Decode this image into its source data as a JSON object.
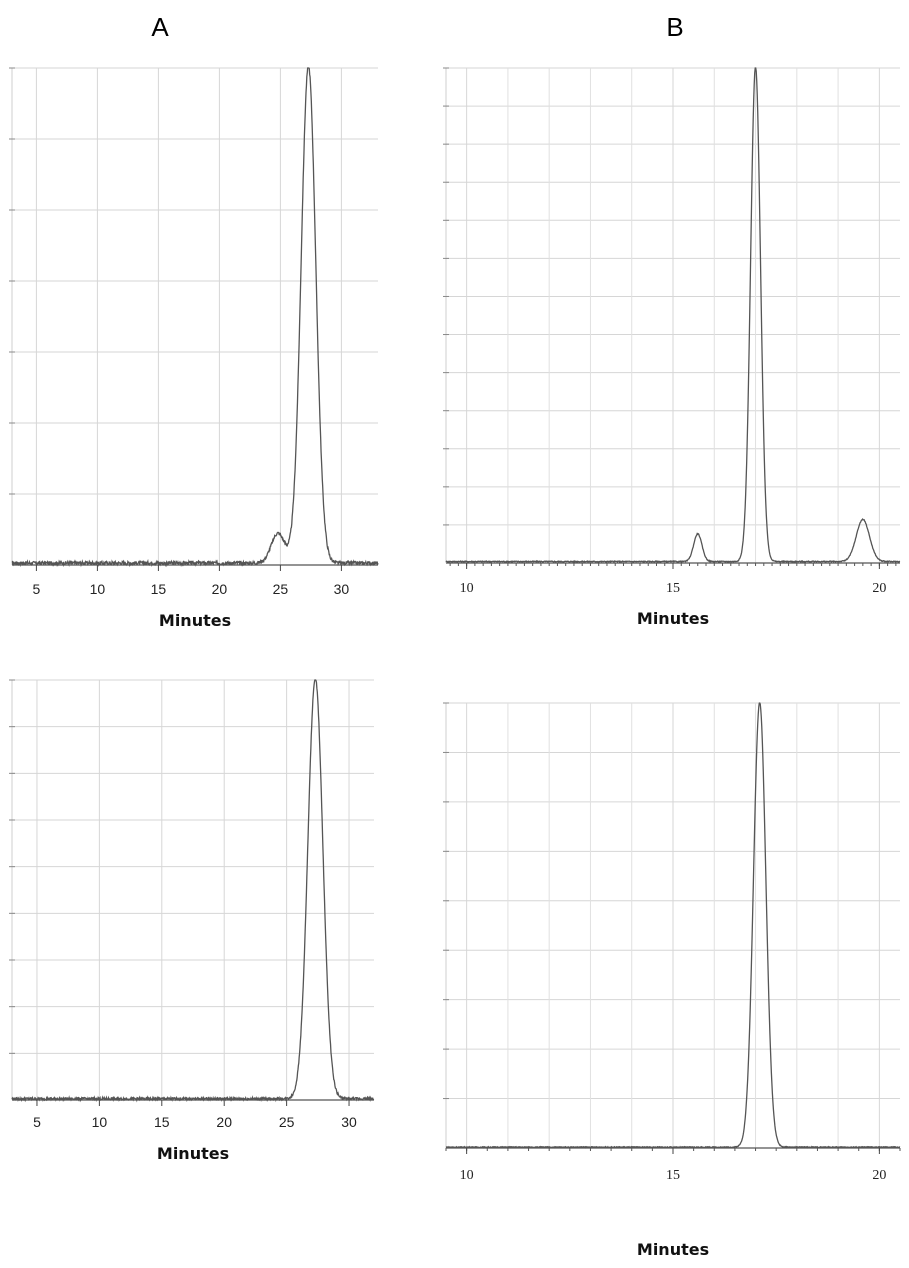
{
  "panel_labels": {
    "a": "A",
    "b": "B"
  },
  "chart_data": [
    {
      "id": "a-top",
      "type": "line",
      "xlabel": "Minutes",
      "xlim": [
        3,
        33
      ],
      "ylim": [
        0,
        100
      ],
      "x_ticks": [
        5,
        10,
        15,
        20,
        25,
        30
      ],
      "x_tick_labels": [
        "5",
        "10",
        "15",
        "20",
        "25",
        "30"
      ],
      "y_gridlines": 7,
      "grid": true,
      "peaks": [
        {
          "x": 24.8,
          "height": 6.0,
          "width": 0.55
        },
        {
          "x": 27.3,
          "height": 100,
          "width": 0.6
        }
      ],
      "baseline": 0.4,
      "noise": 0.35
    },
    {
      "id": "b-top",
      "type": "line",
      "xlabel": "Minutes",
      "xlim": [
        9.5,
        20.5
      ],
      "ylim": [
        0,
        100
      ],
      "x_ticks": [
        10,
        15,
        20
      ],
      "x_tick_labels": [
        "10",
        "15",
        "20"
      ],
      "minor_tick_step": 0.2,
      "y_gridlines": 13,
      "grid": true,
      "peaks": [
        {
          "x": 15.6,
          "height": 5.6,
          "width": 0.1
        },
        {
          "x": 17.0,
          "height": 100,
          "width": 0.12
        },
        {
          "x": 19.6,
          "height": 8.5,
          "width": 0.16
        }
      ],
      "baseline": 0.3,
      "noise": 0.1
    },
    {
      "id": "a-bottom",
      "type": "line",
      "xlabel": "Minutes",
      "xlim": [
        3,
        32
      ],
      "ylim": [
        0,
        100
      ],
      "x_ticks": [
        5,
        10,
        15,
        20,
        25,
        30
      ],
      "x_tick_labels": [
        "5",
        "10",
        "15",
        "20",
        "25",
        "30"
      ],
      "y_gridlines": 9,
      "grid": true,
      "peaks": [
        {
          "x": 27.3,
          "height": 100,
          "width": 0.6
        }
      ],
      "baseline": 0.3,
      "noise": 0.3
    },
    {
      "id": "b-bottom",
      "type": "line",
      "xlabel": "Minutes",
      "xlim": [
        9.5,
        20.5
      ],
      "ylim": [
        0,
        100
      ],
      "x_ticks": [
        10,
        15,
        20
      ],
      "x_tick_labels": [
        "10",
        "15",
        "20"
      ],
      "minor_tick_step": 0.5,
      "y_gridlines": 9,
      "grid": true,
      "peaks": [
        {
          "x": 17.1,
          "height": 100,
          "width": 0.15
        }
      ],
      "baseline": 0.2,
      "noise": 0.1
    }
  ]
}
